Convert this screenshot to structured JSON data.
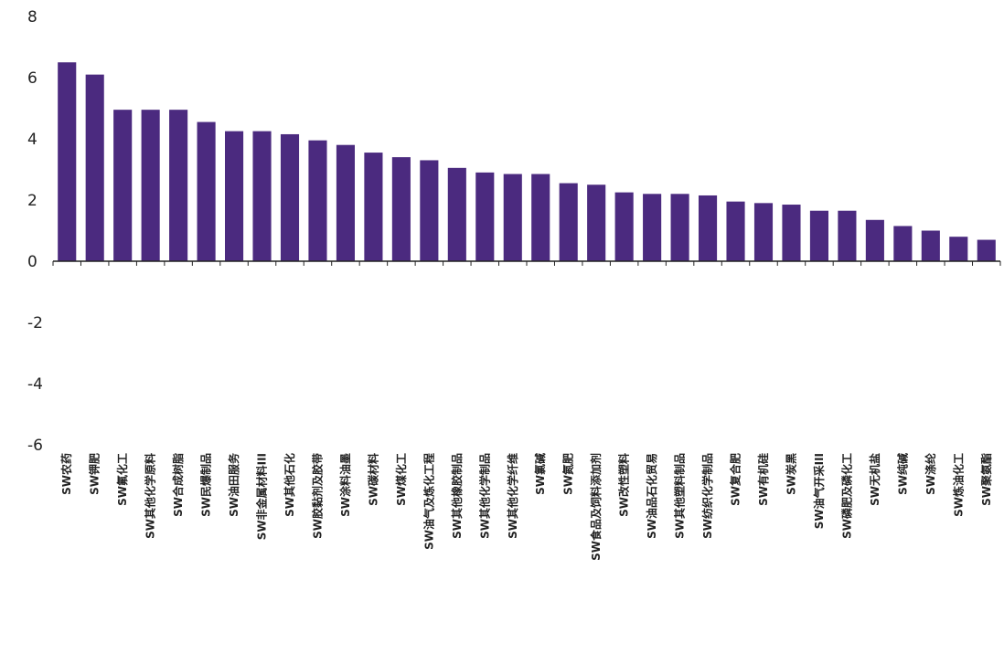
{
  "chart_data": {
    "type": "bar",
    "title": "",
    "xlabel": "",
    "ylabel": "",
    "ylim": [
      -6,
      8
    ],
    "yticks": [
      8,
      6,
      4,
      2,
      0,
      -2,
      -4,
      -6
    ],
    "ytick_labels": [
      "8",
      "6",
      "4",
      "2",
      "0",
      "-2",
      "-4",
      "-6"
    ],
    "grid": false,
    "legend": "none",
    "bar_color": "#4b2a7f",
    "categories": [
      "SW农药",
      "SW钾肥",
      "SW氟化工",
      "SW其他化学原料",
      "SW合成树脂",
      "SW民爆制品",
      "SW油田服务",
      "SW非金属材料III",
      "SW其他石化",
      "SW胶黏剂及胶带",
      "SW涂料油墨",
      "SW碳材料",
      "SW煤化工",
      "SW油气及炼化工程",
      "SW其他橡胶制品",
      "SW其他化学制品",
      "SW其他化学纤维",
      "SW氯碱",
      "SW氮肥",
      "SW食品及饲料添加剂",
      "SW改性塑料",
      "SW油品石化贸易",
      "SW其他塑料制品",
      "SW纺织化学制品",
      "SW复合肥",
      "SW有机硅",
      "SW炭黑",
      "SW油气开采III",
      "SW磷肥及磷化工",
      "SW无机盐",
      "SW纯碱",
      "SW涤纶",
      "SW炼油化工",
      "SW聚氨酯"
    ],
    "values": [
      6.5,
      6.1,
      4.95,
      4.95,
      4.95,
      4.55,
      4.25,
      4.25,
      4.15,
      3.95,
      3.8,
      3.55,
      3.4,
      3.3,
      3.05,
      2.9,
      2.85,
      2.85,
      2.55,
      2.5,
      2.25,
      2.2,
      2.2,
      2.15,
      1.95,
      1.9,
      1.85,
      1.65,
      1.65,
      1.35,
      1.15,
      1.0,
      0.8,
      0.7
    ]
  }
}
